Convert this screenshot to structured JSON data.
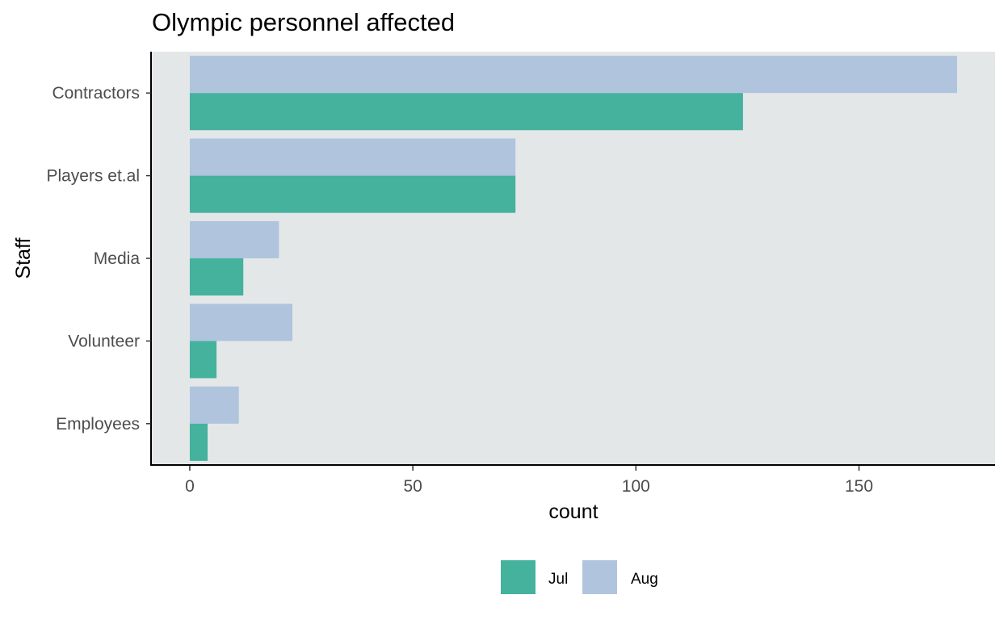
{
  "chart_data": {
    "type": "bar",
    "orientation": "horizontal",
    "title": "Olympic personnel affected",
    "xlabel": "count",
    "ylabel": "Staff",
    "categories": [
      "Contractors",
      "Players et.al",
      "Media",
      "Volunteer",
      "Employees"
    ],
    "series": [
      {
        "name": "Aug",
        "color": "#b0c4de",
        "values": [
          172,
          73,
          20,
          23,
          11
        ]
      },
      {
        "name": "Jul",
        "color": "#45b29d",
        "values": [
          124,
          73,
          12,
          6,
          4
        ]
      }
    ],
    "legend_order": [
      "Jul",
      "Aug"
    ],
    "xlim": [
      -8.5,
      180.5
    ],
    "xticks": [
      0,
      50,
      100,
      150
    ],
    "grid": false,
    "legend_position": "bottom",
    "panel_background": "#e4e7e8"
  }
}
